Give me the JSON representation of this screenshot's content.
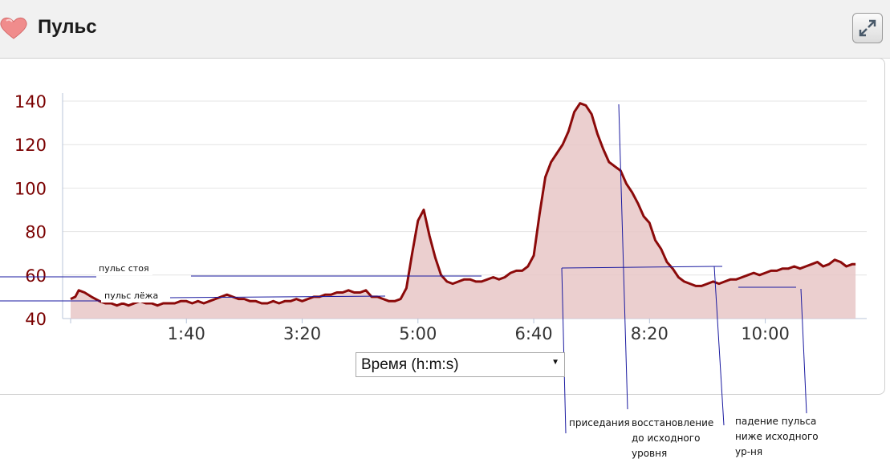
{
  "header": {
    "title": "Пульс",
    "icon": "heart-icon",
    "expand_icon": "expand-icon"
  },
  "selector": {
    "value": "Время (h:m:s)"
  },
  "chart_data": {
    "type": "area",
    "title": "Пульс",
    "xlabel": "Время (h:m:s)",
    "ylabel": "",
    "ylim": [
      40,
      140
    ],
    "xlim_seconds": [
      0,
      680
    ],
    "y_ticks": [
      40,
      60,
      80,
      100,
      120,
      140
    ],
    "x_ticks": [
      "1:40",
      "3:20",
      "5:00",
      "6:40",
      "8:20",
      "10:00"
    ],
    "x_tick_seconds": [
      100,
      200,
      300,
      400,
      500,
      600
    ],
    "colors": {
      "line": "#8b0a0a",
      "fill": "#e8c7c7",
      "axis_text": "#7a0000",
      "annotation_line": "#1a1aa0"
    },
    "grid": true,
    "series": [
      {
        "x": [
          0,
          4,
          7,
          12,
          18,
          25,
          30,
          35,
          40,
          45,
          50,
          55,
          60,
          65,
          70,
          75,
          80,
          85,
          90,
          95,
          100,
          105,
          110,
          115,
          120,
          125,
          130,
          135,
          140,
          145,
          150,
          155,
          160,
          165,
          170,
          175,
          180,
          185,
          190,
          195,
          200,
          205,
          210,
          215,
          220,
          225,
          230,
          235,
          240,
          245,
          250,
          255,
          260,
          265,
          270,
          275,
          280,
          285,
          290,
          295,
          300,
          305,
          310,
          315,
          320,
          325,
          330,
          335,
          340,
          345,
          350,
          355,
          360,
          365,
          370,
          375,
          380,
          385,
          390,
          395,
          400,
          405,
          410,
          415,
          420,
          425,
          430,
          435,
          440,
          445,
          450,
          455,
          460,
          465,
          470,
          475,
          480,
          485,
          490,
          495,
          500,
          505,
          510,
          515,
          520,
          525,
          530,
          535,
          540,
          545,
          550,
          555,
          560,
          565,
          570,
          575,
          580,
          585,
          590,
          595,
          600,
          605,
          610,
          615,
          620,
          625,
          630,
          635,
          640,
          645,
          650,
          655,
          660,
          665,
          670,
          675,
          678
        ],
        "values": [
          49,
          50,
          53,
          52,
          50,
          48,
          47,
          47,
          46,
          47,
          46,
          47,
          48,
          47,
          47,
          46,
          47,
          47,
          47,
          48,
          48,
          47,
          48,
          47,
          48,
          49,
          50,
          51,
          50,
          49,
          49,
          48,
          48,
          47,
          47,
          48,
          47,
          48,
          48,
          49,
          48,
          49,
          50,
          50,
          51,
          51,
          52,
          52,
          53,
          52,
          52,
          53,
          50,
          50,
          49,
          48,
          48,
          49,
          54,
          70,
          85,
          90,
          78,
          68,
          60,
          57,
          56,
          57,
          58,
          58,
          57,
          57,
          58,
          59,
          58,
          59,
          61,
          62,
          62,
          64,
          69,
          88,
          105,
          112,
          116,
          120,
          126,
          135,
          139,
          138,
          134,
          125,
          118,
          112,
          110,
          108,
          102,
          98,
          93,
          87,
          84,
          76,
          72,
          66,
          63,
          59,
          57,
          56,
          55,
          55,
          56,
          57,
          56,
          57,
          58,
          58,
          59,
          60,
          61,
          60,
          61,
          62,
          62,
          63,
          63,
          64,
          63,
          64,
          65,
          66,
          64,
          65,
          67,
          66,
          64,
          65,
          65
        ]
      }
    ],
    "annotations": [
      {
        "text": "пульс стоя"
      },
      {
        "text": "пульс лёжа"
      },
      {
        "text": "приседания"
      },
      {
        "text": "восстановление до исходного уровня",
        "lines": [
          "восстановление",
          "до исходного",
          "уровня"
        ]
      },
      {
        "text": "падение пульса ниже исходного ур-ня",
        "lines": [
          "падение пульса",
          "ниже исходного",
          "ур-ня"
        ]
      }
    ]
  }
}
